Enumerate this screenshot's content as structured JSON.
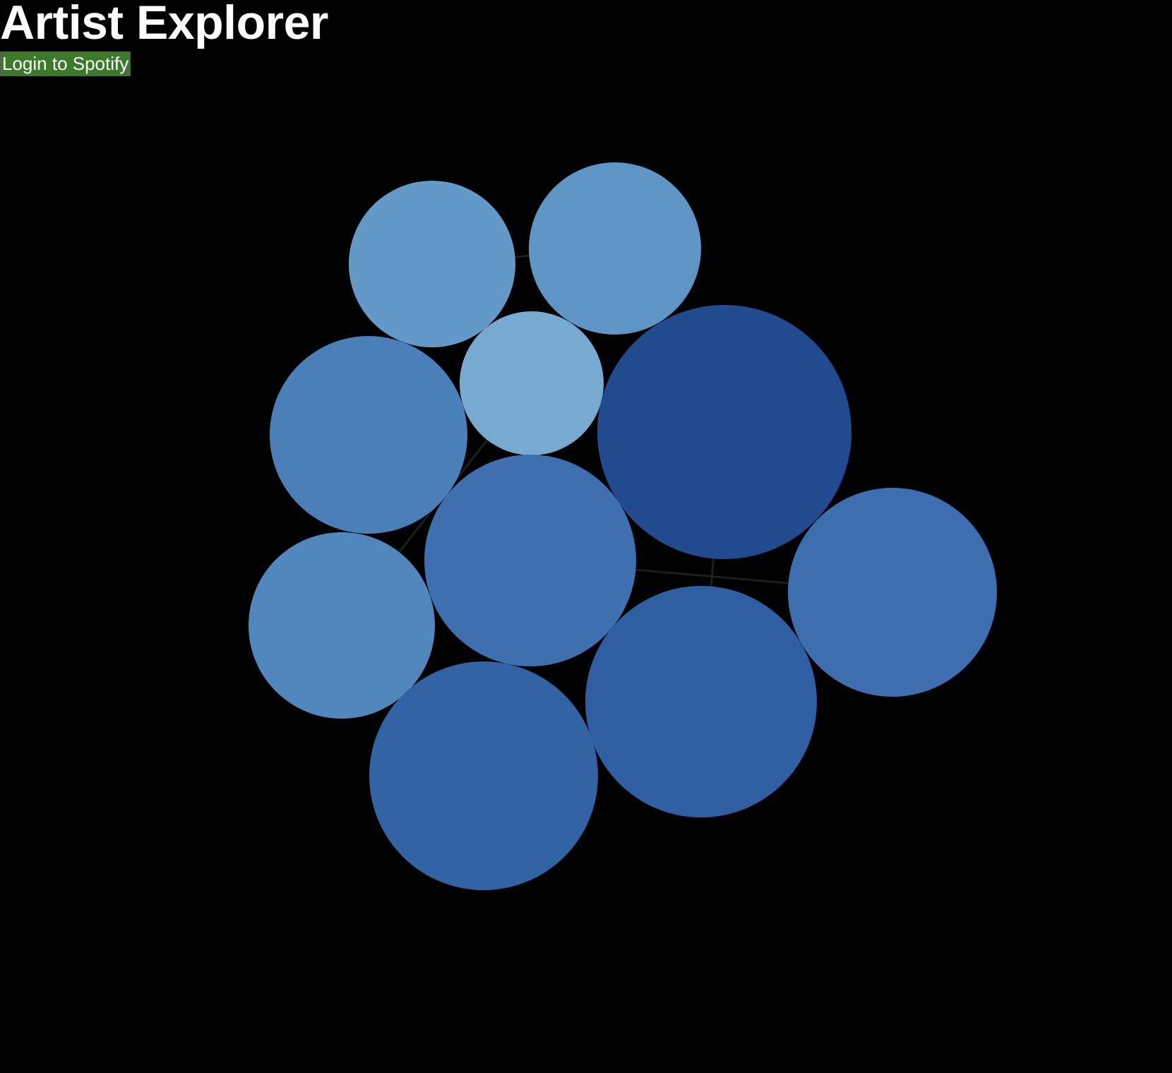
{
  "app": {
    "title": "Artist Explorer"
  },
  "header": {
    "login_label": "Login to Spotify"
  },
  "colors": {
    "background": "#000000",
    "login_button": "#3a7a2a",
    "link": "#1e1e1e"
  },
  "graph": {
    "nodes": [
      {
        "id": "artist-1",
        "color": "#6399c6"
      },
      {
        "id": "artist-2",
        "color": "#5e95c4"
      },
      {
        "id": "artist-3",
        "color": "#78a9d0"
      },
      {
        "id": "artist-4",
        "color": "#4a7fba"
      },
      {
        "id": "artist-5",
        "color": "#224a8e"
      },
      {
        "id": "artist-6",
        "color": "#3e70b0"
      },
      {
        "id": "artist-7",
        "color": "#5287bd"
      },
      {
        "id": "artist-8",
        "color": "#3d6fb0"
      },
      {
        "id": "artist-9",
        "color": "#2f5fa2"
      },
      {
        "id": "artist-10",
        "color": "#3263a5"
      }
    ],
    "links": [
      [
        "artist-1",
        "artist-2"
      ],
      [
        "artist-1",
        "artist-3"
      ],
      [
        "artist-1",
        "artist-4"
      ],
      [
        "artist-2",
        "artist-3"
      ],
      [
        "artist-2",
        "artist-5"
      ],
      [
        "artist-3",
        "artist-4"
      ],
      [
        "artist-3",
        "artist-5"
      ],
      [
        "artist-3",
        "artist-6"
      ],
      [
        "artist-4",
        "artist-6"
      ],
      [
        "artist-4",
        "artist-7"
      ],
      [
        "artist-5",
        "artist-6"
      ],
      [
        "artist-5",
        "artist-8"
      ],
      [
        "artist-5",
        "artist-9"
      ],
      [
        "artist-6",
        "artist-7"
      ],
      [
        "artist-6",
        "artist-9"
      ],
      [
        "artist-6",
        "artist-10"
      ],
      [
        "artist-7",
        "artist-10"
      ],
      [
        "artist-8",
        "artist-9"
      ],
      [
        "artist-9",
        "artist-10"
      ],
      [
        "artist-3",
        "artist-7"
      ],
      [
        "artist-6",
        "artist-8"
      ]
    ]
  }
}
